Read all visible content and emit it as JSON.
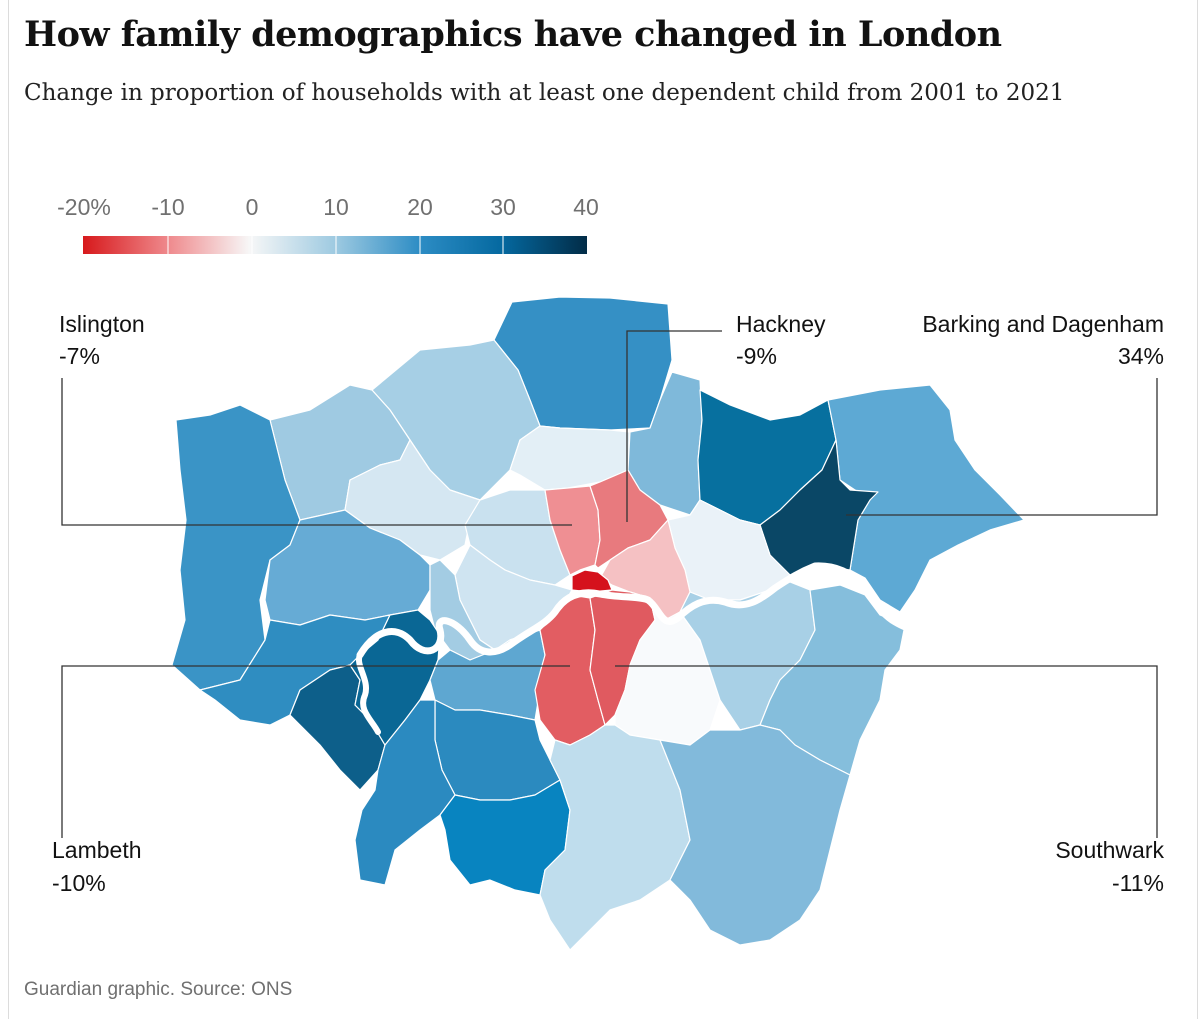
{
  "title": "How family demographics have changed in London",
  "subtitle": "Change in proportion of households with at least one dependent child from 2001 to 2021",
  "source": "Guardian graphic. Source: ONS",
  "legend": {
    "ticks": [
      "-20%",
      "-10",
      "0",
      "10",
      "20",
      "30",
      "40"
    ],
    "domain": [
      -20,
      40
    ],
    "colors": [
      "#d7191c",
      "#f4a5a7",
      "#f7f7f7",
      "#9ecae1",
      "#3690c0",
      "#0570b0",
      "#023858"
    ]
  },
  "callouts": [
    {
      "name": "Islington",
      "value": "-7%"
    },
    {
      "name": "Hackney",
      "value": "-9%"
    },
    {
      "name": "Barking and Dagenham",
      "value": "34%"
    },
    {
      "name": "Lambeth",
      "value": "-10%"
    },
    {
      "name": "Southwark",
      "value": "-11%"
    }
  ],
  "map_colors": {
    "deep_blue": "#0b4a6b",
    "dark_blue": "#05739f",
    "mid_blue": "#2f8fc0",
    "blue": "#3f97c6",
    "light_blue": "#84bedd",
    "pale_blue": "#b9d9ec",
    "very_pale_blue": "#dbeaf4",
    "near_white": "#eef4f8",
    "light_red": "#f3b3b5",
    "mid_red": "#ea7f83",
    "red": "#e05d62",
    "deep_red": "#d6121c",
    "river": "#ffffff"
  }
}
